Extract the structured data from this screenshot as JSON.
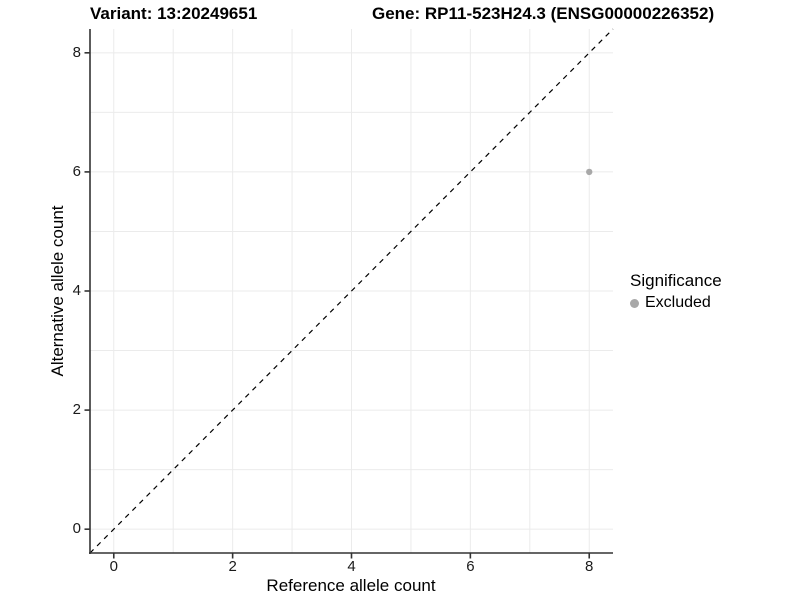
{
  "titles": {
    "variant": "Variant: 13:20249651",
    "gene": "Gene: RP11-523H24.3 (ENSG00000226352)"
  },
  "axes": {
    "x": {
      "label": "Reference allele count"
    },
    "y": {
      "label": "Alternative allele count"
    }
  },
  "legend": {
    "title": "Significance",
    "items": [
      {
        "label": "Excluded",
        "color": "#a8a8a8"
      }
    ]
  },
  "style": {
    "background": "#ffffff",
    "grid_color": "#ebebeb",
    "axis_color": "#333333",
    "tick_label_color": "#1a1a1a",
    "identity_line_color": "#000000",
    "point_color": "#a8a8a8"
  },
  "chart_data": {
    "type": "scatter",
    "title": "Variant: 13:20249651 | Gene: RP11-523H24.3 (ENSG00000226352)",
    "xlabel": "Reference allele count",
    "ylabel": "Alternative allele count",
    "xlim": [
      -0.4,
      8.4
    ],
    "ylim": [
      -0.4,
      8.4
    ],
    "xticks": [
      0,
      2,
      4,
      6,
      8
    ],
    "yticks": [
      0,
      2,
      4,
      6,
      8
    ],
    "grid_every": 1,
    "grid_on": true,
    "identity_line": {
      "slope": 1,
      "intercept": 0,
      "style": "dashed",
      "color": "#000000"
    },
    "legend_position": "right",
    "legend_title": "Significance",
    "series": [
      {
        "name": "Excluded",
        "color": "#a8a8a8",
        "point_radius": 3.2,
        "points": [
          {
            "x": 8,
            "y": 6
          }
        ]
      }
    ]
  }
}
